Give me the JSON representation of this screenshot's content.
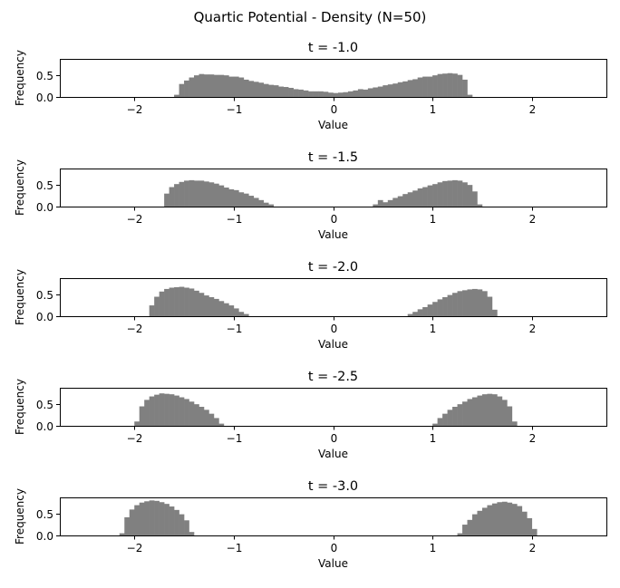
{
  "chart_data": {
    "type": "histogram",
    "suptitle": "Quartic Potential - Density (N=50)",
    "bar_color": "#808080",
    "xlim": [
      -2.75,
      2.75
    ],
    "ylim": [
      0,
      0.88
    ],
    "xticks": [
      -2,
      -1,
      0,
      1,
      2
    ],
    "xtick_labels": [
      "−2",
      "−1",
      "0",
      "1",
      "2"
    ],
    "yticks": [
      0.0,
      0.5
    ],
    "ytick_labels": [
      "0.0",
      "0.5"
    ],
    "bin_width": 0.05,
    "panels": [
      {
        "title": "t = -1.0",
        "xlabel": "Value",
        "ylabel": "Frequency",
        "bins_start": -1.6,
        "values": [
          0.05,
          0.3,
          0.38,
          0.45,
          0.5,
          0.53,
          0.52,
          0.52,
          0.51,
          0.51,
          0.5,
          0.47,
          0.47,
          0.45,
          0.4,
          0.37,
          0.35,
          0.33,
          0.3,
          0.28,
          0.27,
          0.24,
          0.23,
          0.21,
          0.18,
          0.17,
          0.15,
          0.13,
          0.13,
          0.13,
          0.12,
          0.1,
          0.09,
          0.1,
          0.11,
          0.13,
          0.15,
          0.18,
          0.17,
          0.2,
          0.22,
          0.24,
          0.27,
          0.29,
          0.31,
          0.34,
          0.36,
          0.39,
          0.41,
          0.45,
          0.47,
          0.47,
          0.5,
          0.53,
          0.54,
          0.55,
          0.54,
          0.51,
          0.4,
          0.05
        ]
      },
      {
        "title": "t = -1.5",
        "xlabel": "Value",
        "ylabel": "Frequency",
        "segments": [
          {
            "bins_start": -1.7,
            "values": [
              0.3,
              0.45,
              0.52,
              0.57,
              0.6,
              0.61,
              0.6,
              0.6,
              0.58,
              0.56,
              0.53,
              0.49,
              0.44,
              0.4,
              0.38,
              0.33,
              0.3,
              0.25,
              0.2,
              0.15,
              0.09,
              0.05
            ]
          },
          {
            "bins_start": 0.4,
            "values": [
              0.05,
              0.15,
              0.1,
              0.15,
              0.2,
              0.24,
              0.29,
              0.33,
              0.37,
              0.42,
              0.45,
              0.49,
              0.52,
              0.56,
              0.59,
              0.6,
              0.61,
              0.6,
              0.56,
              0.5,
              0.35,
              0.05
            ]
          }
        ]
      },
      {
        "title": "t = -2.0",
        "xlabel": "Value",
        "ylabel": "Frequency",
        "segments": [
          {
            "bins_start": -1.85,
            "values": [
              0.25,
              0.45,
              0.57,
              0.63,
              0.66,
              0.67,
              0.68,
              0.66,
              0.64,
              0.59,
              0.54,
              0.48,
              0.44,
              0.4,
              0.35,
              0.3,
              0.25,
              0.18,
              0.1,
              0.05
            ]
          },
          {
            "bins_start": 0.75,
            "values": [
              0.05,
              0.1,
              0.16,
              0.21,
              0.27,
              0.33,
              0.39,
              0.44,
              0.49,
              0.54,
              0.58,
              0.6,
              0.62,
              0.63,
              0.62,
              0.58,
              0.45,
              0.15
            ]
          }
        ]
      },
      {
        "title": "t = -2.5",
        "xlabel": "Value",
        "ylabel": "Frequency",
        "segments": [
          {
            "bins_start": -2.0,
            "values": [
              0.1,
              0.45,
              0.6,
              0.68,
              0.72,
              0.75,
              0.74,
              0.73,
              0.7,
              0.66,
              0.62,
              0.56,
              0.5,
              0.44,
              0.37,
              0.28,
              0.18,
              0.05
            ]
          },
          {
            "bins_start": 1.0,
            "values": [
              0.05,
              0.18,
              0.28,
              0.37,
              0.44,
              0.5,
              0.56,
              0.62,
              0.66,
              0.7,
              0.73,
              0.74,
              0.73,
              0.68,
              0.6,
              0.45,
              0.1
            ]
          }
        ]
      },
      {
        "title": "t = -3.0",
        "xlabel": "Value",
        "ylabel": "Frequency",
        "segments": [
          {
            "bins_start": -2.15,
            "values": [
              0.05,
              0.42,
              0.6,
              0.7,
              0.76,
              0.79,
              0.81,
              0.8,
              0.77,
              0.73,
              0.67,
              0.59,
              0.49,
              0.35,
              0.08
            ]
          },
          {
            "bins_start": 1.25,
            "values": [
              0.05,
              0.25,
              0.36,
              0.49,
              0.57,
              0.64,
              0.7,
              0.74,
              0.77,
              0.78,
              0.76,
              0.73,
              0.68,
              0.55,
              0.4,
              0.15
            ]
          }
        ]
      }
    ]
  }
}
